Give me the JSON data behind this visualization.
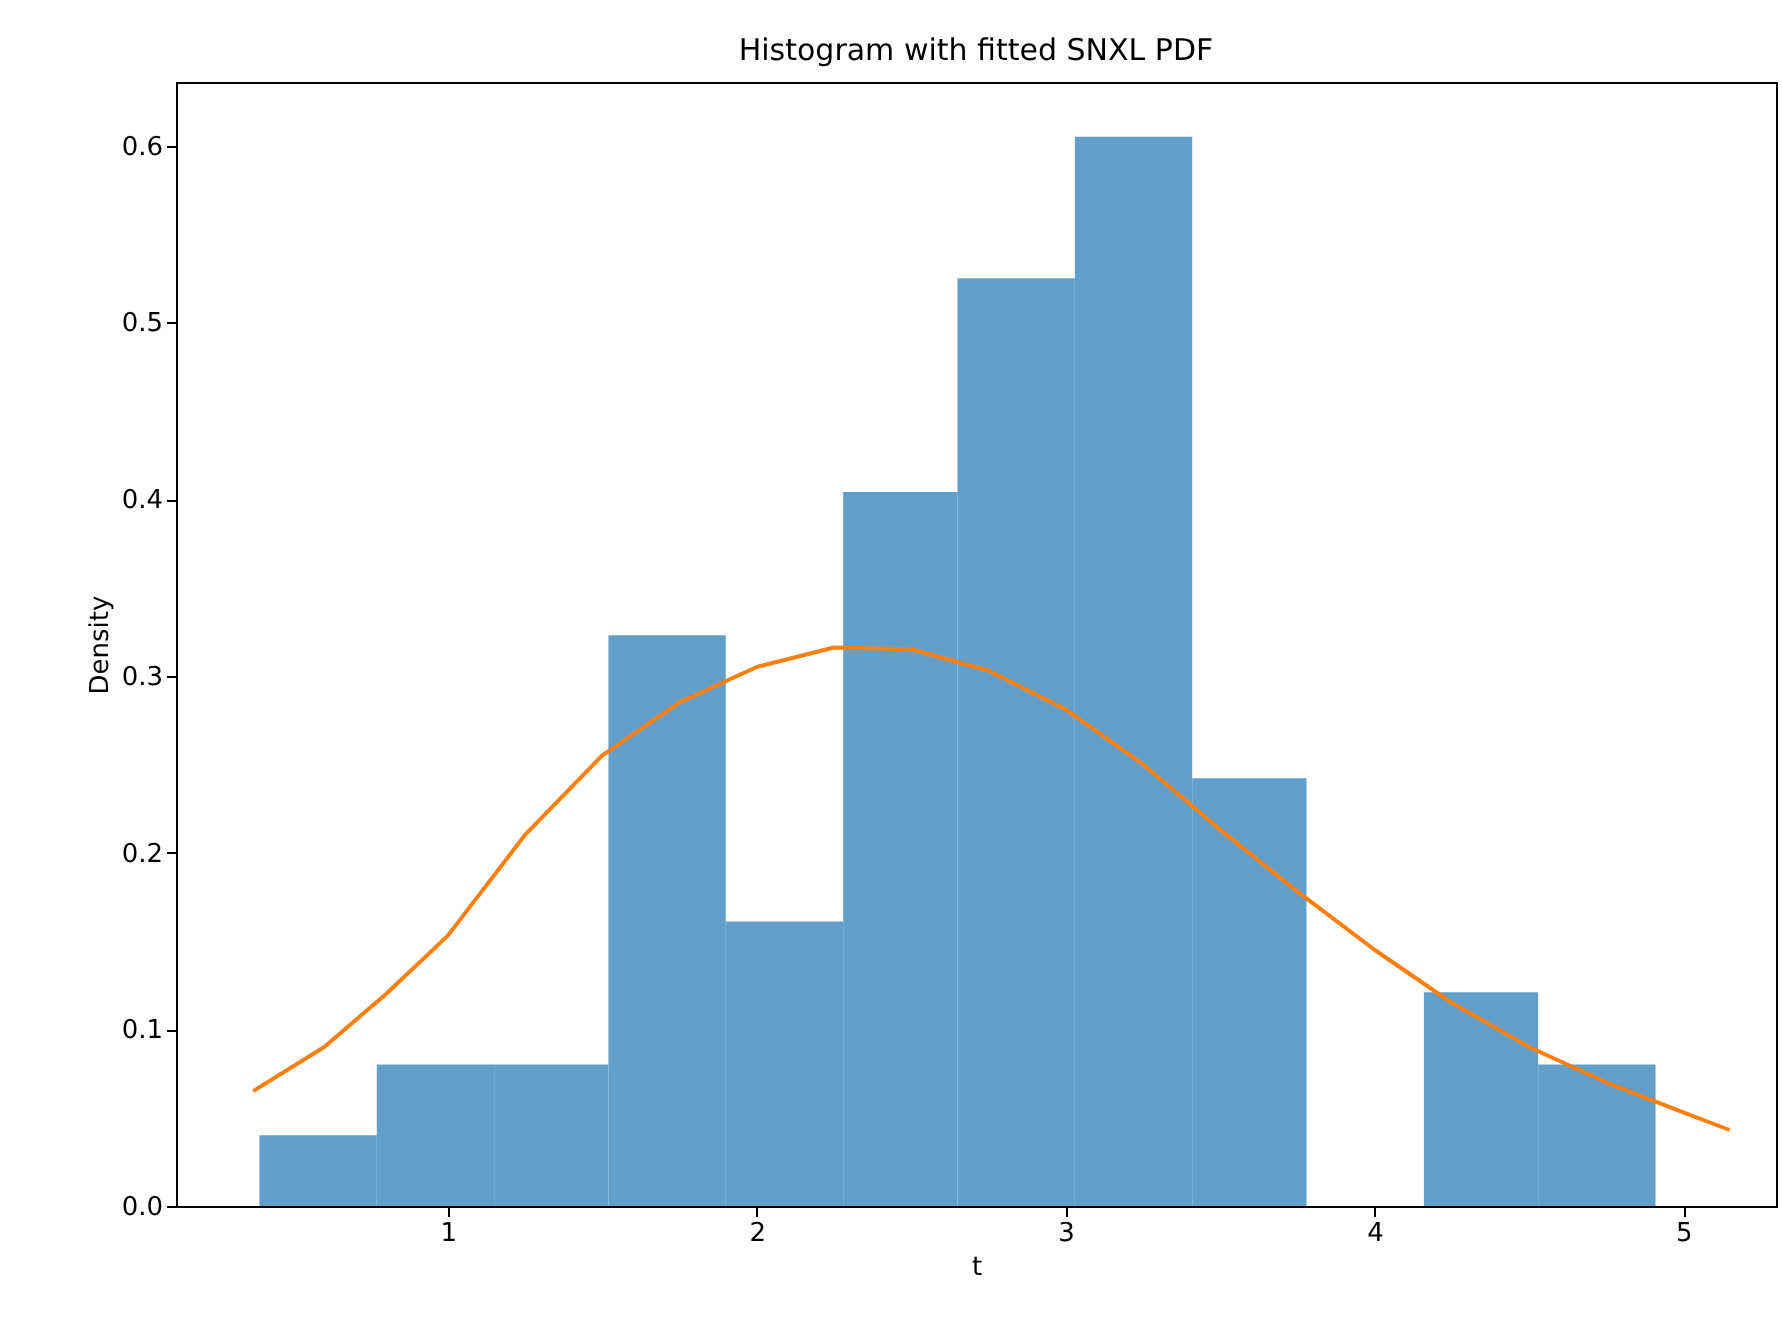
{
  "chart_data": {
    "type": "histogram",
    "title": "Histogram with fitted SNXL PDF",
    "xlabel": "t",
    "ylabel": "Density",
    "bins": [
      0.39,
      0.77,
      1.15,
      1.52,
      1.9,
      2.28,
      2.65,
      3.03,
      3.41,
      3.78,
      4.16,
      4.53,
      4.91
    ],
    "values": [
      0.04,
      0.08,
      0.08,
      0.323,
      0.161,
      0.404,
      0.525,
      0.605,
      0.242,
      0,
      0.121,
      0.08
    ],
    "color": "#62a0cb",
    "series": [
      {
        "type": "line",
        "color": "#ff7f0e",
        "x": [
          0.37,
          0.6,
          0.8,
          1.0,
          1.25,
          1.5,
          1.75,
          2.0,
          2.25,
          2.5,
          2.75,
          3.0,
          3.25,
          3.5,
          3.75,
          4.0,
          4.25,
          4.5,
          4.75,
          5.0,
          5.15
        ],
        "values": [
          0.065,
          0.09,
          0.12,
          0.153,
          0.21,
          0.255,
          0.285,
          0.305,
          0.316,
          0.315,
          0.303,
          0.281,
          0.25,
          0.213,
          0.178,
          0.145,
          0.115,
          0.09,
          0.07,
          0.053,
          0.043
        ]
      }
    ],
    "xlim": [
      0.12,
      5.3
    ],
    "xticks": [
      1,
      2,
      3,
      4,
      5
    ],
    "ylim": [
      0,
      0.636
    ],
    "yticks": [
      {
        "value": 0,
        "label": "0.0"
      },
      0.1,
      0.2,
      0.3,
      0.4,
      0.5,
      0.6
    ],
    "grid": false
  }
}
